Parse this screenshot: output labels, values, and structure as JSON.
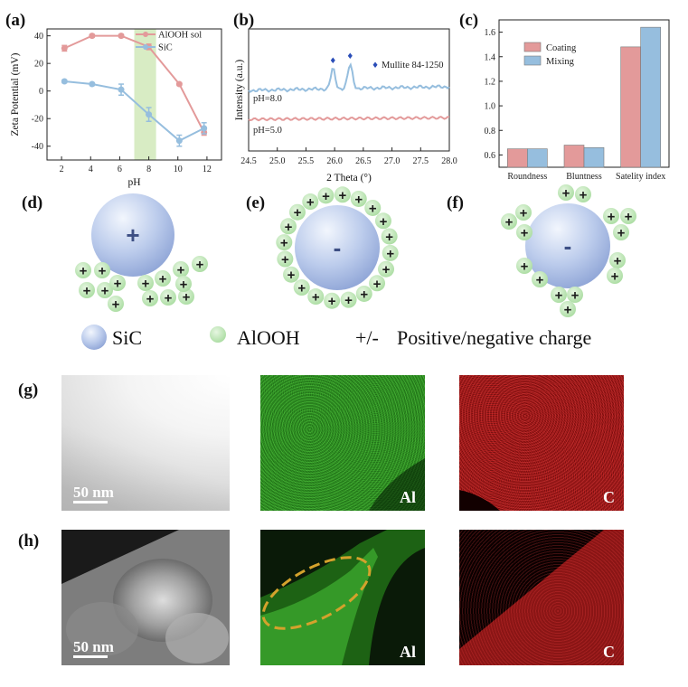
{
  "panel_labels": {
    "a": "(a)",
    "b": "(b)",
    "c": "(c)",
    "d": "(d)",
    "e": "(e)",
    "f": "(f)",
    "g": "(g)",
    "h": "(h)"
  },
  "chart_data": [
    {
      "id": "a",
      "type": "line",
      "xlabel": "pH",
      "ylabel": "Zeta Potential (mV)",
      "xlim": [
        1,
        13
      ],
      "ylim": [
        -50,
        45
      ],
      "xticks": [
        2,
        4,
        6,
        8,
        10,
        12
      ],
      "yticks": [
        -40,
        -30,
        -20,
        -10,
        0,
        10,
        20,
        30,
        40
      ],
      "legend_position": "top-right",
      "shaded_band": [
        7,
        8.5
      ],
      "series": [
        {
          "name": "AlOOH sol",
          "color": "#e39a9a",
          "x": [
            2.2,
            4.1,
            6.1,
            8.0,
            10.1,
            11.8
          ],
          "y": [
            31,
            40,
            40,
            32,
            5,
            -30
          ],
          "err": [
            2,
            1,
            1,
            2,
            1,
            2
          ]
        },
        {
          "name": "SiC",
          "color": "#96bede",
          "x": [
            2.2,
            4.1,
            6.1,
            8.0,
            10.1,
            11.8
          ],
          "y": [
            7,
            5,
            1,
            -17,
            -36,
            -27
          ],
          "err": [
            1,
            1,
            4,
            5,
            4,
            4
          ]
        }
      ]
    },
    {
      "id": "b",
      "type": "line",
      "xlabel": "2 Theta (°)",
      "ylabel": "Intensity (a.u.)",
      "xlim": [
        24.5,
        28.0
      ],
      "xticks": [
        24.5,
        25.0,
        25.5,
        26.0,
        26.5,
        27.0,
        27.5,
        28.0
      ],
      "legend_text": "Mullite 84-1250",
      "peak_markers": [
        25.97,
        26.27
      ],
      "series": [
        {
          "name": "pH=8.0",
          "color": "#96bede"
        },
        {
          "name": "pH=5.0",
          "color": "#e39a9a"
        }
      ]
    },
    {
      "id": "c",
      "type": "bar",
      "categories": [
        "Roundness",
        "Bluntness",
        "Satelity index"
      ],
      "ylim": [
        0.5,
        1.7
      ],
      "yticks": [
        0.6,
        0.8,
        1.0,
        1.2,
        1.4,
        1.6
      ],
      "legend_position": "top-left",
      "series": [
        {
          "name": "Coating",
          "color": "#e39a9a",
          "values": [
            0.65,
            0.68,
            1.48
          ]
        },
        {
          "name": "Mixing",
          "color": "#96bede",
          "values": [
            0.65,
            0.66,
            1.64
          ]
        }
      ]
    }
  ],
  "schematic": {
    "d": {
      "sign": "+"
    },
    "e": {
      "sign": "-"
    },
    "f": {
      "sign": "-"
    },
    "particle_sign": "+"
  },
  "key": {
    "sic": "SiC",
    "alooh": "AlOOH",
    "charge_symbol": "+/-",
    "charge_text": "Positive/negative charge"
  },
  "micro": {
    "scale_g": "50 nm",
    "scale_h": "50 nm",
    "al_label": "Al",
    "c_label": "C"
  }
}
